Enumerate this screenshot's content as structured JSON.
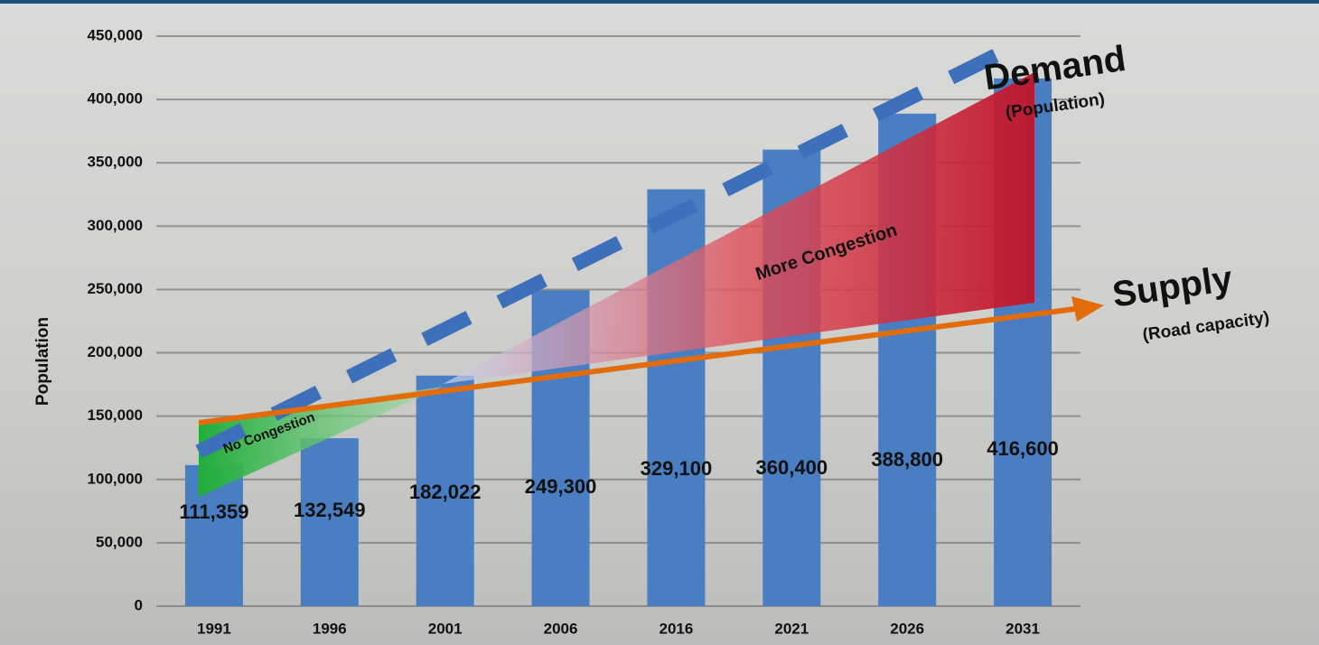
{
  "chart_data": {
    "type": "bar",
    "y_label": "Population",
    "categories": [
      "1991",
      "1996",
      "2001",
      "2006",
      "2016",
      "2021",
      "2026",
      "2031"
    ],
    "values": [
      111359,
      132549,
      182022,
      249300,
      329100,
      360400,
      388800,
      416600
    ],
    "value_labels": [
      "111,359",
      "132,549",
      "182,022",
      "249,300",
      "329,100",
      "360,400",
      "388,800",
      "416,600"
    ],
    "color": "#4a7ec2",
    "ylim": [
      0,
      450000
    ],
    "yticks": [
      0,
      {
        "value": 50000,
        "label": "50,000"
      },
      {
        "value": 100000,
        "label": "100,000"
      },
      {
        "value": 150000,
        "label": "150,000"
      },
      {
        "value": 200000,
        "label": "200,000"
      },
      {
        "value": 250000,
        "label": "250,000"
      },
      {
        "value": 300000,
        "label": "300,000"
      },
      {
        "value": 350000,
        "label": "350,000"
      },
      {
        "value": 400000,
        "label": "400,000"
      },
      {
        "value": 450000,
        "label": "450,000"
      }
    ],
    "grid": true,
    "annotations": {
      "demand": "Demand",
      "demand_note": "(Population)",
      "supply": "Supply",
      "supply_note": "(Road capacity)",
      "more": "More Congestion",
      "none": "No Congestion"
    }
  }
}
